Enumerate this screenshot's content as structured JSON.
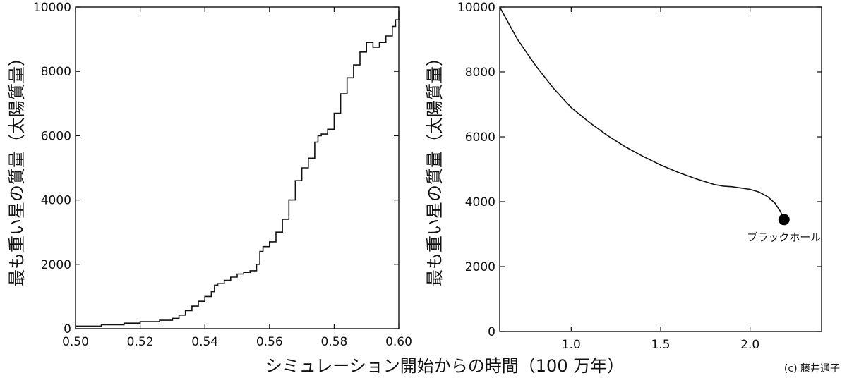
{
  "xlabel": "シミュレーション開始からの時間（100 万年）",
  "credit": "(c) 藤井通子",
  "chart_data": [
    {
      "type": "line",
      "ylabel": "最も重い星の質量（太陽質量）",
      "xlim": [
        0.5,
        0.6
      ],
      "ylim": [
        0,
        10000
      ],
      "xticks": [
        "0.50",
        "0.52",
        "0.54",
        "0.56",
        "0.58",
        "0.60"
      ],
      "yticks": [
        "0",
        "2000",
        "4000",
        "6000",
        "8000",
        "10000"
      ],
      "grid": false,
      "series": [
        {
          "x": [
            0.5,
            0.508,
            0.515,
            0.52,
            0.526,
            0.53,
            0.532,
            0.534,
            0.536,
            0.538,
            0.54,
            0.542,
            0.543,
            0.544,
            0.546,
            0.548,
            0.55,
            0.552,
            0.554,
            0.556,
            0.557,
            0.558,
            0.56,
            0.562,
            0.564,
            0.566,
            0.568,
            0.57,
            0.572,
            0.574,
            0.575,
            0.576,
            0.578,
            0.58,
            0.582,
            0.584,
            0.586,
            0.588,
            0.59,
            0.592,
            0.594,
            0.596,
            0.598,
            0.599,
            0.6
          ],
          "y": [
            80,
            120,
            170,
            220,
            260,
            320,
            420,
            560,
            700,
            850,
            1000,
            1150,
            1350,
            1400,
            1500,
            1600,
            1700,
            1750,
            1800,
            2000,
            2400,
            2550,
            2700,
            3000,
            3400,
            4000,
            4600,
            5000,
            5300,
            5800,
            6000,
            6050,
            6200,
            6700,
            7300,
            7800,
            8200,
            8600,
            8900,
            8750,
            8900,
            9100,
            9400,
            9600,
            9900
          ],
          "step": true
        }
      ]
    },
    {
      "type": "line",
      "ylabel": "最も重い星の質量（太陽質量）",
      "xlim": [
        0.6,
        2.4
      ],
      "ylim": [
        0,
        10000
      ],
      "xticks": [
        "1.0",
        "1.5",
        "2.0"
      ],
      "xtick_values": [
        1.0,
        1.5,
        2.0
      ],
      "yticks": [
        "0",
        "2000",
        "4000",
        "6000",
        "8000",
        "10000"
      ],
      "grid": false,
      "series": [
        {
          "x": [
            0.6,
            0.7,
            0.8,
            0.9,
            1.0,
            1.1,
            1.2,
            1.3,
            1.4,
            1.5,
            1.6,
            1.7,
            1.8,
            1.85,
            1.9,
            2.0,
            2.05,
            2.1,
            2.14,
            2.17,
            2.19
          ],
          "y": [
            10000,
            9000,
            8200,
            7500,
            6900,
            6450,
            6050,
            5700,
            5400,
            5130,
            4900,
            4700,
            4530,
            4480,
            4460,
            4380,
            4300,
            4150,
            3950,
            3700,
            3450
          ],
          "step": false
        }
      ],
      "annotation": {
        "text": "ブラックホール",
        "x": 2.19,
        "y": 3450
      }
    }
  ]
}
